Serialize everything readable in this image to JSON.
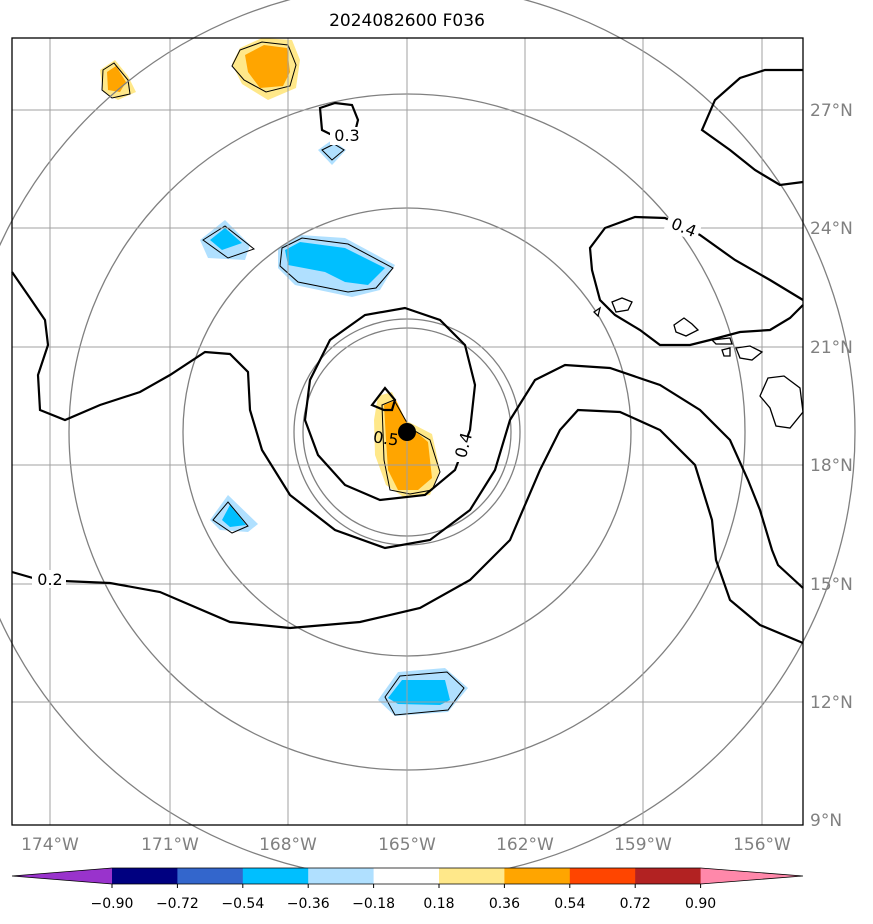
{
  "title": "2024082600 F036",
  "lat_labels": [
    "27°N",
    "24°N",
    "21°N",
    "18°N",
    "15°N",
    "12°N",
    "9°N"
  ],
  "lon_labels": [
    "174°W",
    "171°W",
    "168°W",
    "165°W",
    "162°W",
    "159°W",
    "156°W"
  ],
  "contour_labels": [
    "0.2",
    "0.3",
    "0.4",
    "0.4",
    "0.5"
  ],
  "colorbar": {
    "ticks": [
      "−0.90",
      "−0.72",
      "−0.54",
      "−0.36",
      "−0.18",
      "0.18",
      "0.36",
      "0.54",
      "0.72",
      "0.90"
    ],
    "colors": [
      "#9933cc",
      "#000080",
      "#3366cc",
      "#00bfff",
      "#b0e0ff",
      "#ffffff",
      "#ffe88a",
      "#ffa500",
      "#ff4500",
      "#b22222",
      "#ff88aa"
    ]
  },
  "storm_center": {
    "lon": -165.0,
    "lat": 18.9
  },
  "colors": {
    "positive_light": "#ffe88a",
    "positive": "#ffa500",
    "negative_light": "#b0e0ff",
    "negative": "#00bfff",
    "grid": "#808080"
  }
}
